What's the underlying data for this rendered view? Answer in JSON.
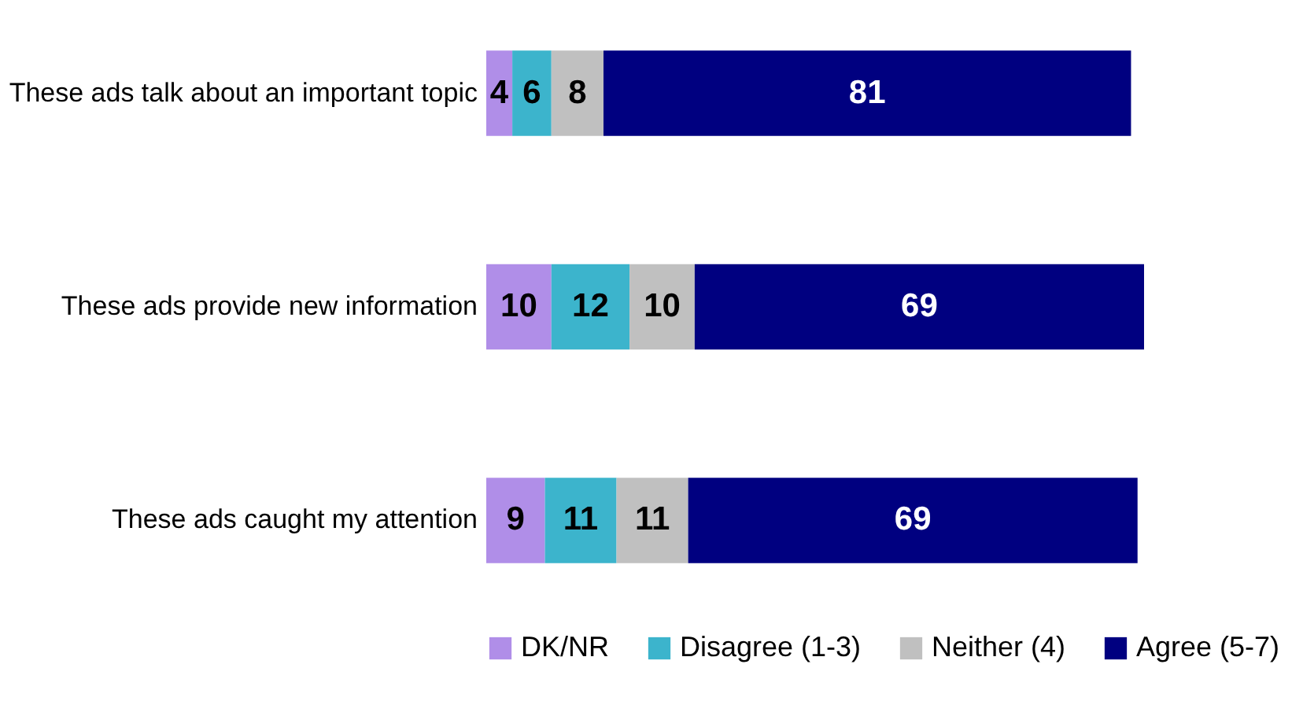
{
  "chart_data": {
    "type": "bar",
    "orientation": "horizontal",
    "stacked": true,
    "data_labels": true,
    "legend": "bottom",
    "categories": [
      "These ads talk about an important topic",
      "These ads provide new information",
      "These ads caught my attention"
    ],
    "series": [
      {
        "name": "DK/NR",
        "color": "#b08ee8",
        "values": [
          4,
          10,
          9
        ]
      },
      {
        "name": "Disagree (1-3)",
        "color": "#3cb4cc",
        "values": [
          6,
          12,
          11
        ]
      },
      {
        "name": "Neither (4)",
        "color": "#c0c0c0",
        "values": [
          8,
          10,
          11
        ]
      },
      {
        "name": "Agree (5-7)",
        "color": "#000080",
        "values": [
          81,
          69,
          69
        ]
      }
    ]
  }
}
